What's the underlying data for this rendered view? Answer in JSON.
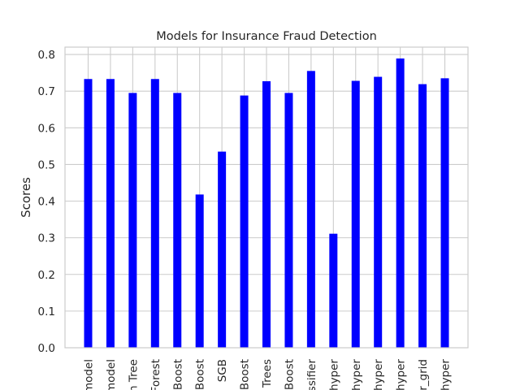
{
  "chart_data": {
    "type": "bar",
    "title": "Models for Insurance Fraud Detection",
    "xlabel": "",
    "ylabel": "Scores",
    "ylim": [
      0,
      0.82
    ],
    "yticks": [
      0.0,
      0.1,
      0.2,
      0.3,
      0.4,
      0.5,
      0.6,
      0.7,
      0.8
    ],
    "grid": true,
    "legend": "none",
    "bar_color": "#0000ff",
    "grid_color": "#cccccc",
    "categories": [
      "model",
      "model",
      "n Tree",
      "Forest",
      "Boost",
      "Boost",
      "SGB",
      "Boost",
      "Trees",
      "Boost",
      "ssifier",
      "hyper",
      "hyper",
      "hyper",
      "hyper",
      "r_grid",
      "hyper"
    ],
    "values": [
      0.733,
      0.733,
      0.695,
      0.733,
      0.695,
      0.418,
      0.535,
      0.688,
      0.727,
      0.695,
      0.755,
      0.311,
      0.728,
      0.739,
      0.789,
      0.719,
      0.735
    ]
  }
}
